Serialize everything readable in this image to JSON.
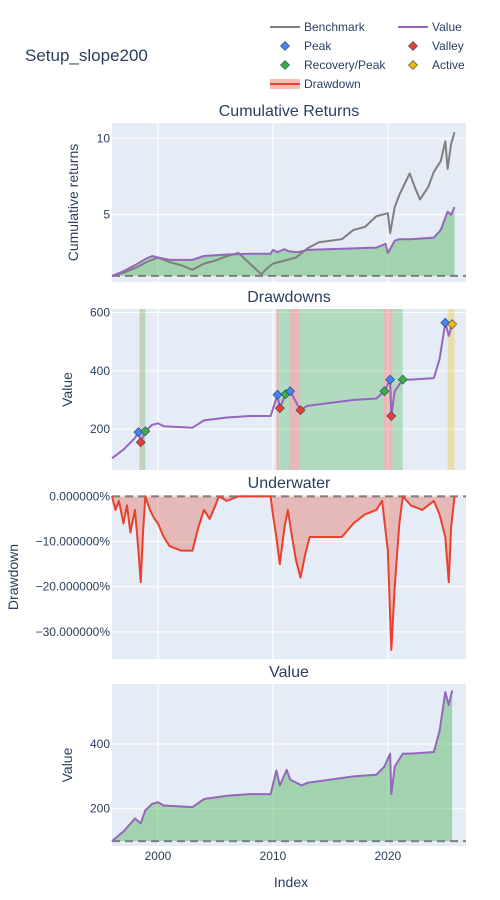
{
  "figure": {
    "title": "Setup_slope200",
    "x_title": "Index"
  },
  "legend": [
    {
      "label": "Benchmark",
      "symbol": "line",
      "color": "#7f7f7f"
    },
    {
      "label": "Value",
      "symbol": "line",
      "color": "#9467bd"
    },
    {
      "label": "Peak",
      "symbol": "diamond",
      "color": "#4285f4"
    },
    {
      "label": "Valley",
      "symbol": "diamond",
      "color": "#e8412c"
    },
    {
      "label": "Recovery/Peak",
      "symbol": "diamond",
      "color": "#3cb043"
    },
    {
      "label": "Active",
      "symbol": "diamond",
      "color": "#f5b800"
    },
    {
      "label": "Drawdown",
      "symbol": "band",
      "color": "#e8412c"
    }
  ],
  "x_axis": {
    "range": [
      1996,
      2026.8
    ],
    "ticks": [
      2000,
      2010,
      2020
    ],
    "tick_labels": [
      "2000",
      "2010",
      "2020"
    ]
  },
  "chart_data": [
    {
      "id": "cumulative",
      "type": "line",
      "title": "Cumulative Returns",
      "ylabel": "Cumulative returns",
      "ylim": [
        0.6,
        11
      ],
      "yticks": [
        5,
        10
      ],
      "ytick_labels": [
        "5",
        "10"
      ],
      "baseline": 1,
      "series": [
        {
          "name": "Benchmark",
          "color": "#7f7f7f",
          "points": [
            [
              1996.0,
              1.0
            ],
            [
              1997.0,
              1.2
            ],
            [
              1998.0,
              1.5
            ],
            [
              1999.0,
              1.9
            ],
            [
              2000.0,
              2.2
            ],
            [
              2001.0,
              1.9
            ],
            [
              2002.0,
              1.7
            ],
            [
              2003.0,
              1.4
            ],
            [
              2004.0,
              1.8
            ],
            [
              2005.0,
              2.0
            ],
            [
              2006.0,
              2.3
            ],
            [
              2007.0,
              2.5
            ],
            [
              2008.0,
              1.8
            ],
            [
              2009.0,
              1.1
            ],
            [
              2009.5,
              1.5
            ],
            [
              2010.0,
              1.8
            ],
            [
              2011.0,
              2.0
            ],
            [
              2012.0,
              2.2
            ],
            [
              2013.0,
              2.8
            ],
            [
              2014.0,
              3.2
            ],
            [
              2015.0,
              3.3
            ],
            [
              2016.0,
              3.4
            ],
            [
              2017.0,
              4.0
            ],
            [
              2018.0,
              4.2
            ],
            [
              2019.0,
              4.9
            ],
            [
              2020.0,
              5.1
            ],
            [
              2020.2,
              3.8
            ],
            [
              2020.6,
              5.5
            ],
            [
              2021.0,
              6.3
            ],
            [
              2021.9,
              7.7
            ],
            [
              2022.4,
              6.7
            ],
            [
              2022.8,
              6.0
            ],
            [
              2023.5,
              6.8
            ],
            [
              2024.0,
              7.8
            ],
            [
              2024.6,
              8.5
            ],
            [
              2025.0,
              9.8
            ],
            [
              2025.2,
              8.0
            ],
            [
              2025.5,
              9.6
            ],
            [
              2025.8,
              10.4
            ]
          ]
        },
        {
          "name": "Value",
          "color": "#9467bd",
          "points": [
            [
              1996.0,
              1.0
            ],
            [
              1997.0,
              1.3
            ],
            [
              1998.0,
              1.7
            ],
            [
              1998.9,
              2.1
            ],
            [
              1999.5,
              2.3
            ],
            [
              2000.0,
              2.2
            ],
            [
              2001.0,
              2.05
            ],
            [
              2003.0,
              2.05
            ],
            [
              2004.0,
              2.3
            ],
            [
              2006.0,
              2.4
            ],
            [
              2008.0,
              2.45
            ],
            [
              2009.8,
              2.45
            ],
            [
              2010.0,
              2.7
            ],
            [
              2010.4,
              2.55
            ],
            [
              2011.0,
              2.75
            ],
            [
              2011.4,
              2.6
            ],
            [
              2012.2,
              2.55
            ],
            [
              2013.0,
              2.7
            ],
            [
              2015.0,
              2.75
            ],
            [
              2017.0,
              2.8
            ],
            [
              2019.0,
              2.85
            ],
            [
              2019.5,
              3.0
            ],
            [
              2019.8,
              3.1
            ],
            [
              2020.0,
              2.5
            ],
            [
              2020.6,
              3.3
            ],
            [
              2021.0,
              3.4
            ],
            [
              2022.0,
              3.4
            ],
            [
              2024.0,
              3.5
            ],
            [
              2024.6,
              4.0
            ],
            [
              2025.2,
              5.2
            ],
            [
              2025.5,
              5.0
            ],
            [
              2025.8,
              5.5
            ]
          ]
        }
      ]
    },
    {
      "id": "drawdowns",
      "type": "line",
      "title": "Drawdowns",
      "ylabel": "Value",
      "ylim": [
        60,
        612
      ],
      "yticks": [
        200,
        400,
        600
      ],
      "ytick_labels": [
        "200",
        "400",
        "600"
      ],
      "recovered_spans": [
        [
          1998.5,
          1998.9
        ],
        [
          2010.5,
          2011.4
        ],
        [
          2012.3,
          2019.6
        ],
        [
          2020.4,
          2021.3
        ]
      ],
      "drawdown_spans": [
        [
          1998.4,
          1998.5
        ],
        [
          2010.3,
          2010.5
        ],
        [
          2011.4,
          2012.3
        ],
        [
          2019.6,
          2020.4
        ]
      ],
      "active_spans": [
        [
          2025.2,
          2025.8
        ]
      ],
      "markers": [
        {
          "kind": "Peak",
          "x": 1998.3,
          "y": 190
        },
        {
          "kind": "Valley",
          "x": 1998.5,
          "y": 155
        },
        {
          "kind": "Recovery/Peak",
          "x": 1998.9,
          "y": 193
        },
        {
          "kind": "Peak",
          "x": 2010.4,
          "y": 318
        },
        {
          "kind": "Valley",
          "x": 2010.6,
          "y": 272
        },
        {
          "kind": "Recovery/Peak",
          "x": 2011.1,
          "y": 320
        },
        {
          "kind": "Peak",
          "x": 2011.5,
          "y": 330
        },
        {
          "kind": "Valley",
          "x": 2012.4,
          "y": 265
        },
        {
          "kind": "Recovery/Peak",
          "x": 2019.7,
          "y": 330
        },
        {
          "kind": "Peak",
          "x": 2020.2,
          "y": 370
        },
        {
          "kind": "Valley",
          "x": 2020.3,
          "y": 245
        },
        {
          "kind": "Recovery/Peak",
          "x": 2021.3,
          "y": 370
        },
        {
          "kind": "Peak",
          "x": 2025.0,
          "y": 565
        },
        {
          "kind": "Active",
          "x": 2025.6,
          "y": 560
        }
      ],
      "series": [
        {
          "name": "Value",
          "color": "#9467bd",
          "points": [
            [
              1996.0,
              100
            ],
            [
              1997.0,
              130
            ],
            [
              1998.0,
              170
            ],
            [
              1998.3,
              190
            ],
            [
              1998.5,
              155
            ],
            [
              1998.9,
              193
            ],
            [
              1999.5,
              215
            ],
            [
              2000.0,
              220
            ],
            [
              2000.5,
              210
            ],
            [
              2003.0,
              205
            ],
            [
              2004.0,
              230
            ],
            [
              2006.0,
              240
            ],
            [
              2008.0,
              245
            ],
            [
              2009.8,
              245
            ],
            [
              2010.4,
              318
            ],
            [
              2010.6,
              272
            ],
            [
              2011.1,
              320
            ],
            [
              2011.5,
              330
            ],
            [
              2012.4,
              265
            ],
            [
              2013.0,
              280
            ],
            [
              2015.0,
              290
            ],
            [
              2017.0,
              300
            ],
            [
              2019.0,
              305
            ],
            [
              2019.7,
              330
            ],
            [
              2020.2,
              370
            ],
            [
              2020.3,
              245
            ],
            [
              2020.6,
              330
            ],
            [
              2021.3,
              370
            ],
            [
              2022.0,
              370
            ],
            [
              2024.0,
              375
            ],
            [
              2024.5,
              440
            ],
            [
              2025.0,
              565
            ],
            [
              2025.3,
              520
            ],
            [
              2025.6,
              560
            ]
          ]
        }
      ]
    },
    {
      "id": "underwater",
      "type": "area",
      "title": "Underwater",
      "ylabel": "Drawdown",
      "ylim": [
        -36,
        0.3
      ],
      "yticks": [
        0,
        -10,
        -20,
        -30
      ],
      "ytick_labels": [
        "0.000000%",
        "−10.000000%",
        "−20.000000%",
        "−30.000000%"
      ],
      "series": [
        {
          "name": "Drawdown",
          "color": "#e8412c",
          "points": [
            [
              1996.0,
              0
            ],
            [
              1996.3,
              -3
            ],
            [
              1996.6,
              -1
            ],
            [
              1997.0,
              -6
            ],
            [
              1997.3,
              -2
            ],
            [
              1997.6,
              -8
            ],
            [
              1998.0,
              -3
            ],
            [
              1998.3,
              -12
            ],
            [
              1998.5,
              -19
            ],
            [
              1998.7,
              -8
            ],
            [
              1998.9,
              0
            ],
            [
              1999.3,
              -3
            ],
            [
              1999.7,
              -5
            ],
            [
              2000.0,
              -6
            ],
            [
              2000.5,
              -9
            ],
            [
              2001.0,
              -11
            ],
            [
              2002.0,
              -12
            ],
            [
              2003.0,
              -12
            ],
            [
              2003.5,
              -7
            ],
            [
              2004.0,
              -3
            ],
            [
              2004.5,
              -5
            ],
            [
              2005.0,
              -2
            ],
            [
              2005.3,
              0
            ],
            [
              2006.0,
              -1
            ],
            [
              2007.0,
              0
            ],
            [
              2009.8,
              0
            ],
            [
              2010.0,
              -4
            ],
            [
              2010.3,
              -9
            ],
            [
              2010.6,
              -15
            ],
            [
              2011.0,
              -7
            ],
            [
              2011.3,
              -3
            ],
            [
              2011.6,
              -8
            ],
            [
              2012.0,
              -14
            ],
            [
              2012.4,
              -18
            ],
            [
              2012.8,
              -13
            ],
            [
              2013.2,
              -9
            ],
            [
              2014.0,
              -9
            ],
            [
              2015.0,
              -9
            ],
            [
              2016.0,
              -9
            ],
            [
              2017.0,
              -6
            ],
            [
              2018.0,
              -4
            ],
            [
              2019.0,
              -3
            ],
            [
              2019.5,
              -1
            ],
            [
              2020.0,
              -12
            ],
            [
              2020.3,
              -34
            ],
            [
              2020.6,
              -20
            ],
            [
              2021.0,
              -6
            ],
            [
              2021.3,
              0
            ],
            [
              2022.0,
              -2
            ],
            [
              2023.0,
              -3
            ],
            [
              2024.0,
              -1
            ],
            [
              2024.5,
              -4
            ],
            [
              2025.0,
              -9
            ],
            [
              2025.3,
              -19
            ],
            [
              2025.5,
              -7
            ],
            [
              2025.8,
              0
            ]
          ]
        }
      ]
    },
    {
      "id": "value",
      "type": "area",
      "title": "Value",
      "ylabel": "Value",
      "ylim": [
        85,
        585
      ],
      "yticks": [
        200,
        400
      ],
      "ytick_labels": [
        "200",
        "400"
      ],
      "baseline": 100,
      "series": [
        {
          "name": "Value",
          "color": "#9467bd",
          "points": [
            [
              1996.0,
              100
            ],
            [
              1997.0,
              130
            ],
            [
              1998.0,
              170
            ],
            [
              1998.5,
              155
            ],
            [
              1998.9,
              195
            ],
            [
              1999.5,
              215
            ],
            [
              2000.0,
              220
            ],
            [
              2000.5,
              210
            ],
            [
              2003.0,
              205
            ],
            [
              2004.0,
              230
            ],
            [
              2006.0,
              240
            ],
            [
              2008.0,
              245
            ],
            [
              2009.8,
              245
            ],
            [
              2010.3,
              318
            ],
            [
              2010.6,
              272
            ],
            [
              2011.2,
              320
            ],
            [
              2011.5,
              290
            ],
            [
              2012.5,
              272
            ],
            [
              2013.0,
              280
            ],
            [
              2015.0,
              290
            ],
            [
              2017.0,
              300
            ],
            [
              2019.0,
              305
            ],
            [
              2019.7,
              330
            ],
            [
              2020.2,
              370
            ],
            [
              2020.3,
              245
            ],
            [
              2020.6,
              330
            ],
            [
              2021.3,
              370
            ],
            [
              2022.0,
              370
            ],
            [
              2024.0,
              375
            ],
            [
              2024.5,
              440
            ],
            [
              2025.0,
              560
            ],
            [
              2025.3,
              520
            ],
            [
              2025.6,
              565
            ]
          ]
        }
      ]
    }
  ]
}
